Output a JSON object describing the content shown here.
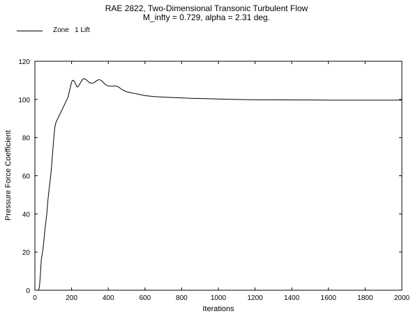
{
  "chart_data": {
    "type": "line",
    "title": "RAE 2822, Two-Dimensional Transonic Turbulent Flow",
    "subtitle": "M_infty = 0.729, alpha = 2.31 deg.",
    "xlabel": "Iterations",
    "ylabel": "Pressure Force Coefficient",
    "xlim": [
      0,
      2000
    ],
    "ylim": [
      0,
      120
    ],
    "x_ticks": [
      0,
      200,
      400,
      600,
      800,
      1000,
      1200,
      1400,
      1600,
      1800,
      2000
    ],
    "y_ticks": [
      0,
      20,
      40,
      60,
      80,
      100,
      120
    ],
    "grid": false,
    "legend_position": "top-left",
    "series": [
      {
        "name": "Zone   1 Lift",
        "color": "#000000",
        "x": [
          20,
          25,
          30,
          35,
          40,
          45,
          50,
          55,
          60,
          65,
          70,
          75,
          80,
          85,
          90,
          95,
          100,
          105,
          110,
          115,
          120,
          125,
          130,
          135,
          140,
          145,
          150,
          155,
          160,
          165,
          170,
          175,
          180,
          185,
          190,
          195,
          200,
          205,
          210,
          215,
          220,
          225,
          230,
          235,
          240,
          245,
          250,
          255,
          260,
          265,
          270,
          275,
          280,
          285,
          290,
          295,
          300,
          310,
          320,
          330,
          340,
          350,
          360,
          370,
          380,
          390,
          400,
          410,
          420,
          430,
          440,
          450,
          460,
          470,
          480,
          490,
          500,
          520,
          540,
          560,
          580,
          600,
          650,
          700,
          750,
          800,
          850,
          900,
          1000,
          1100,
          1200,
          1300,
          1400,
          1500,
          1600,
          1700,
          1800,
          1900,
          1950,
          2000
        ],
        "values": [
          0,
          2,
          8,
          16,
          19,
          22,
          27,
          32,
          36,
          40,
          46,
          51,
          55,
          59,
          64,
          70,
          76,
          82,
          86,
          88,
          89,
          90,
          91,
          92,
          93,
          94,
          95,
          96,
          97,
          98,
          99,
          100,
          101,
          103,
          105,
          107,
          109,
          110,
          110,
          109.5,
          108.5,
          107.5,
          106.5,
          106.7,
          107.3,
          108.2,
          109,
          109.8,
          110.4,
          110.8,
          110.9,
          110.7,
          110.3,
          109.9,
          109.4,
          109,
          108.7,
          108.5,
          108.7,
          109.3,
          110,
          110.4,
          110,
          109.2,
          108.2,
          107.5,
          107,
          106.9,
          106.9,
          107,
          107,
          106.8,
          106.2,
          105.5,
          104.9,
          104.4,
          104,
          103.6,
          103.2,
          102.8,
          102.4,
          102,
          101.5,
          101.2,
          101,
          100.8,
          100.6,
          100.5,
          100.2,
          100,
          99.8,
          99.8,
          99.7,
          99.7,
          99.6,
          99.6,
          99.6,
          99.6,
          99.6,
          99.6
        ]
      }
    ]
  }
}
